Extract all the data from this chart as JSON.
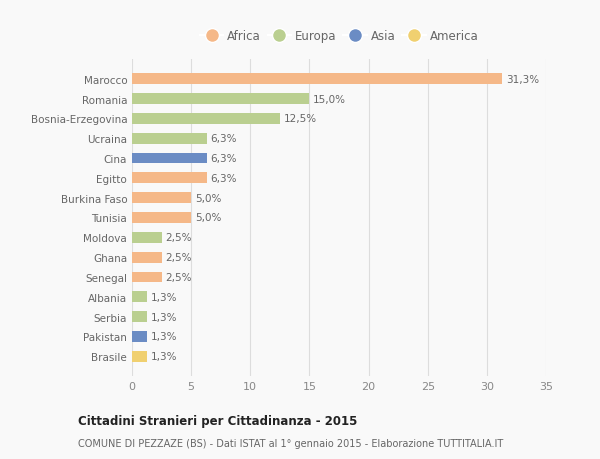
{
  "countries": [
    "Marocco",
    "Romania",
    "Bosnia-Erzegovina",
    "Ucraina",
    "Cina",
    "Egitto",
    "Burkina Faso",
    "Tunisia",
    "Moldova",
    "Ghana",
    "Senegal",
    "Albania",
    "Serbia",
    "Pakistan",
    "Brasile"
  ],
  "values": [
    31.3,
    15.0,
    12.5,
    6.3,
    6.3,
    6.3,
    5.0,
    5.0,
    2.5,
    2.5,
    2.5,
    1.3,
    1.3,
    1.3,
    1.3
  ],
  "labels": [
    "31,3%",
    "15,0%",
    "12,5%",
    "6,3%",
    "6,3%",
    "6,3%",
    "5,0%",
    "5,0%",
    "2,5%",
    "2,5%",
    "2,5%",
    "1,3%",
    "1,3%",
    "1,3%",
    "1,3%"
  ],
  "continents": [
    "Africa",
    "Europa",
    "Europa",
    "Europa",
    "Asia",
    "Africa",
    "Africa",
    "Africa",
    "Europa",
    "Africa",
    "Africa",
    "Europa",
    "Europa",
    "Asia",
    "America"
  ],
  "colors": {
    "Africa": "#F5B888",
    "Europa": "#BACF90",
    "Asia": "#6B8CC4",
    "America": "#F0D070"
  },
  "legend_order": [
    "Africa",
    "Europa",
    "Asia",
    "America"
  ],
  "title": "Cittadini Stranieri per Cittadinanza - 2015",
  "subtitle": "COMUNE DI PEZZAZE (BS) - Dati ISTAT al 1° gennaio 2015 - Elaborazione TUTTITALIA.IT",
  "xlim": [
    0,
    35
  ],
  "xticks": [
    0,
    5,
    10,
    15,
    20,
    25,
    30,
    35
  ],
  "background_color": "#f9f9f9",
  "bar_height": 0.55
}
